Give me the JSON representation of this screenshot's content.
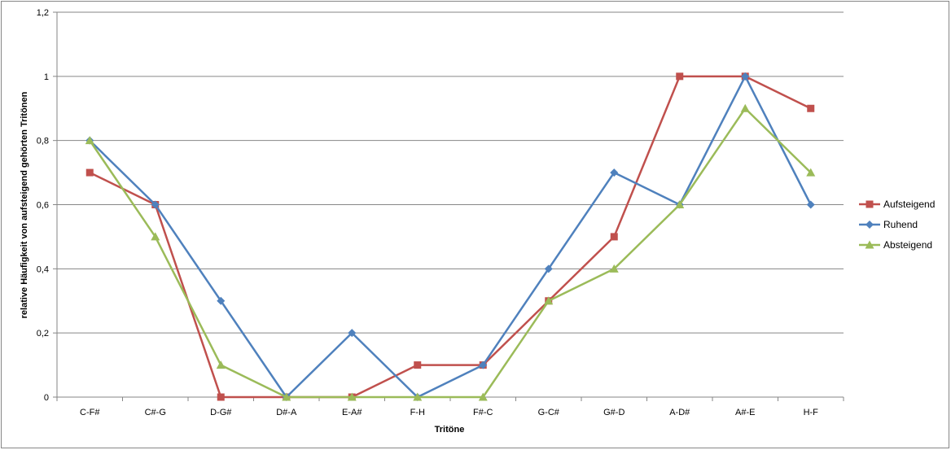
{
  "chart_data": {
    "type": "line",
    "title": "",
    "xlabel": "Tritöne",
    "ylabel": "relative Häufigkeit von aufsteigend gehörten Tritönen",
    "categories": [
      "C-F#",
      "C#-G",
      "D-G#",
      "D#-A",
      "E-A#",
      "F-H",
      "F#-C",
      "G-C#",
      "G#-D",
      "A-D#",
      "A#-E",
      "H-F"
    ],
    "ylim": [
      0,
      1.2
    ],
    "yticks": [
      "0",
      "0,2",
      "0,4",
      "0,6",
      "0,8",
      "1",
      "1,2"
    ],
    "ytick_values": [
      0,
      0.2,
      0.4,
      0.6,
      0.8,
      1.0,
      1.2
    ],
    "grid": true,
    "legend_position": "right",
    "series": [
      {
        "name": "Aufsteigend",
        "color": "#C0504D",
        "marker": "square",
        "values": [
          0.7,
          0.6,
          0.0,
          0.0,
          0.0,
          0.1,
          0.1,
          0.3,
          0.5,
          1.0,
          1.0,
          0.9
        ]
      },
      {
        "name": "Ruhend",
        "color": "#4F81BD",
        "marker": "diamond",
        "values": [
          0.8,
          0.6,
          0.3,
          0.0,
          0.2,
          0.0,
          0.1,
          0.4,
          0.7,
          0.6,
          1.0,
          0.6
        ]
      },
      {
        "name": "Absteigend",
        "color": "#9BBB59",
        "marker": "triangle",
        "values": [
          0.8,
          0.5,
          0.1,
          0.0,
          0.0,
          0.0,
          0.0,
          0.3,
          0.4,
          0.6,
          0.9,
          0.7
        ]
      }
    ]
  }
}
